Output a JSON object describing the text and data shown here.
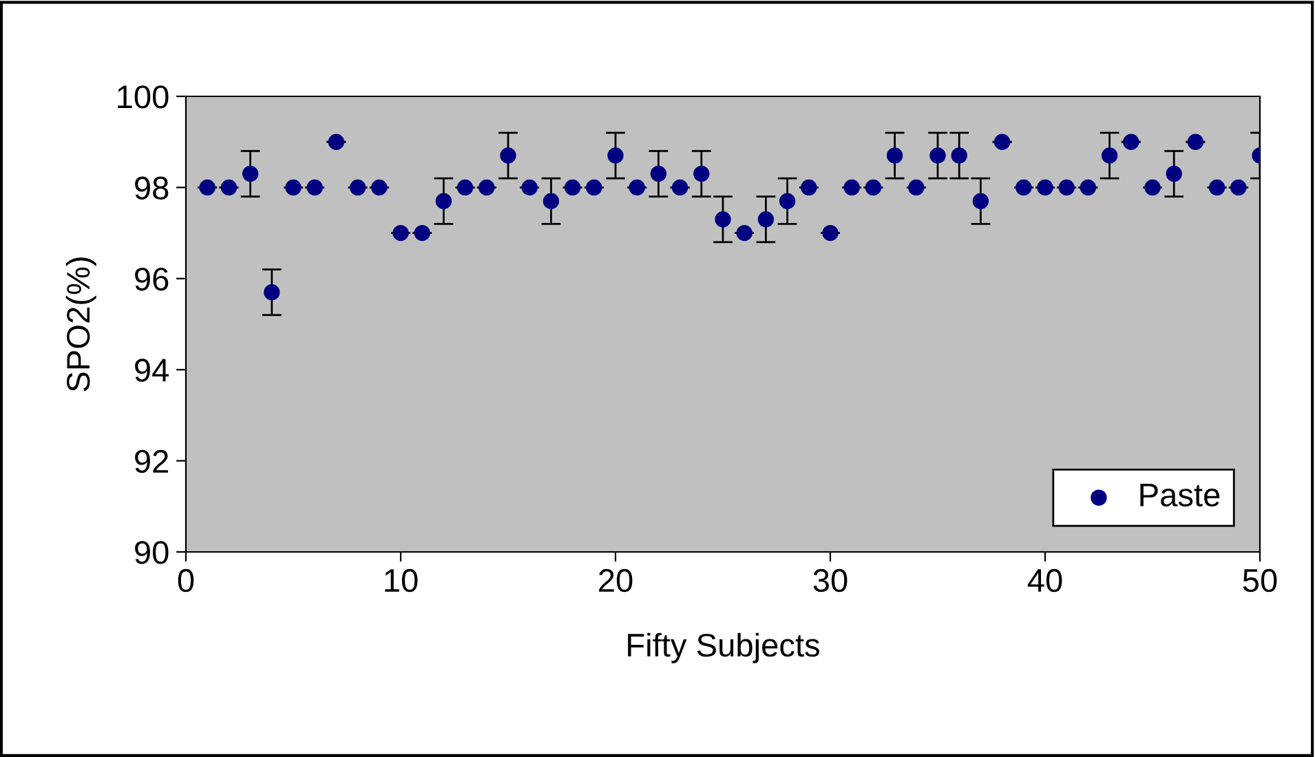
{
  "chart_data": {
    "type": "scatter",
    "xlabel": "Fifty Subjects",
    "ylabel": "SPO2(%)",
    "x": [
      1,
      2,
      3,
      4,
      5,
      6,
      7,
      8,
      9,
      10,
      11,
      12,
      13,
      14,
      15,
      16,
      17,
      18,
      19,
      20,
      21,
      22,
      23,
      24,
      25,
      26,
      27,
      28,
      29,
      30,
      31,
      32,
      33,
      34,
      35,
      36,
      37,
      38,
      39,
      40,
      41,
      42,
      43,
      44,
      45,
      46,
      47,
      48,
      49,
      50
    ],
    "series": [
      {
        "name": "Paste",
        "color": "#000080",
        "values": [
          98,
          98,
          98.3,
          95.7,
          98,
          98,
          99,
          98,
          98,
          97,
          97,
          97.7,
          98,
          98,
          98.7,
          98,
          97.7,
          98,
          98,
          98.7,
          98,
          98.3,
          98,
          98.3,
          97.3,
          97,
          97.3,
          97.7,
          98,
          97,
          98,
          98,
          98.7,
          98,
          98.7,
          98.7,
          97.7,
          99,
          98,
          98,
          98,
          98,
          98.7,
          99,
          98,
          98.3,
          99,
          98,
          98,
          98.7
        ],
        "errors": [
          0,
          0,
          0.5,
          0.5,
          0,
          0,
          0,
          0,
          0,
          0,
          0,
          0.5,
          0,
          0,
          0.5,
          0,
          0.5,
          0,
          0,
          0.5,
          0,
          0.5,
          0,
          0.5,
          0.5,
          0,
          0.5,
          0.5,
          0,
          0,
          0,
          0,
          0.5,
          0,
          0.5,
          0.5,
          0.5,
          0,
          0,
          0,
          0,
          0,
          0.5,
          0,
          0,
          0.5,
          0,
          0,
          0,
          0.5
        ]
      }
    ],
    "xlim": [
      0,
      50
    ],
    "xticks": [
      0,
      10,
      20,
      30,
      40,
      50
    ],
    "ylim": [
      90,
      100
    ],
    "yticks": [
      90,
      92,
      94,
      96,
      98,
      100
    ],
    "grid": false,
    "legend": "bottom right",
    "marker": "circle"
  }
}
